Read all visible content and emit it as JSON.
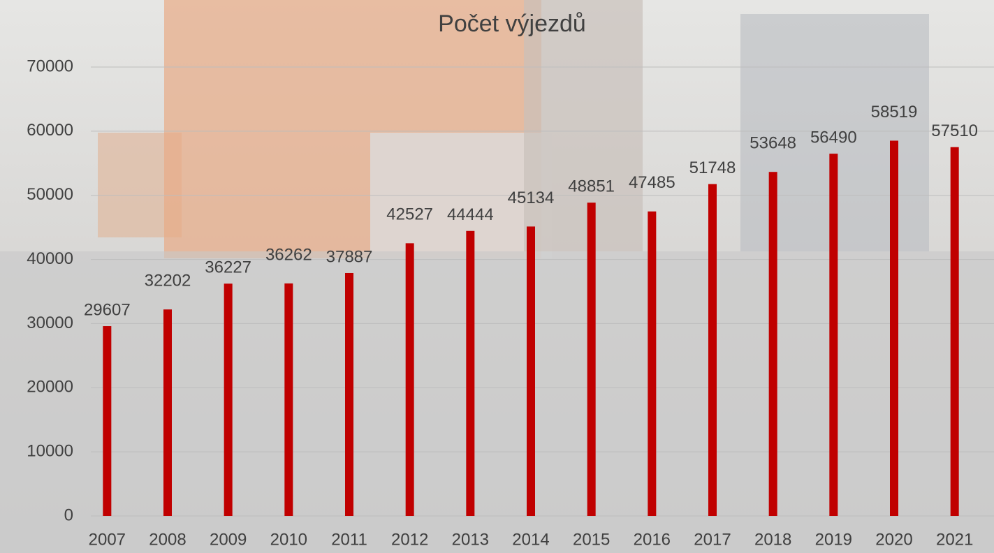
{
  "chart_data": {
    "type": "bar",
    "title": "Počet výjezdů",
    "categories": [
      "2007",
      "2008",
      "2009",
      "2010",
      "2011",
      "2012",
      "2013",
      "2014",
      "2015",
      "2016",
      "2017",
      "2018",
      "2019",
      "2020",
      "2021"
    ],
    "values": [
      29607,
      32202,
      36227,
      36262,
      37887,
      42527,
      44444,
      45134,
      48851,
      47485,
      51748,
      53648,
      56490,
      58519,
      57510
    ],
    "color": "#c00000",
    "ylim": [
      0,
      70000
    ],
    "yticks": [
      0,
      10000,
      20000,
      30000,
      40000,
      50000,
      60000,
      70000
    ],
    "grid": true
  }
}
